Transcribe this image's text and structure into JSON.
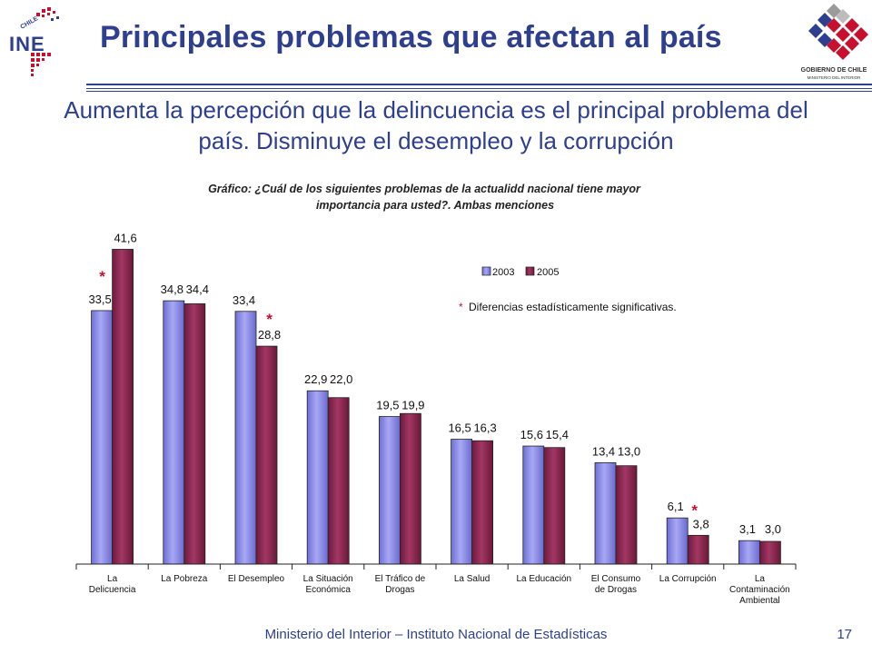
{
  "slide": {
    "title": "Principales problemas que afectan al país",
    "subtitle": "Aumenta la percepción que la delincuencia es el principal problema del país. Disminuye el desempleo y la corrupción",
    "footer": "Ministerio del Interior – Instituto Nacional de Estadísticas",
    "page_number": "17",
    "logo_left": {
      "name": "ine-logo",
      "lettering": "CHILE INE"
    },
    "logo_right": {
      "name": "gobierno-de-chile-logo",
      "lettering": "GOBIERNO DE CHILE",
      "sublettering": "MINISTERIO DEL INTERIOR"
    }
  },
  "chart_data": {
    "type": "bar",
    "title_line1": "Gráfico: ¿Cuál de los siguientes problemas de la actualidd nacional tiene mayor",
    "title_line2": "importancia para usted?. Ambas menciones",
    "categories": [
      [
        "La",
        "Delicuencia"
      ],
      [
        "La Pobreza"
      ],
      [
        "El Desempleo"
      ],
      [
        "La Situación",
        "Económica"
      ],
      [
        "El Tráfico de",
        "Drogas"
      ],
      [
        "La Salud"
      ],
      [
        "La Educación"
      ],
      [
        "El Consumo",
        "de Drogas"
      ],
      [
        "La Corrupción"
      ],
      [
        "La",
        "Contaminación",
        "Ambiental"
      ]
    ],
    "series": [
      {
        "name": "2003",
        "color": "#8f8fe6",
        "values": [
          33.5,
          34.8,
          33.4,
          22.9,
          19.5,
          16.5,
          15.6,
          13.4,
          6.1,
          3.1
        ],
        "labels": [
          "33,5",
          "34,8",
          "33,4",
          "22,9",
          "19,5",
          "16,5",
          "15,6",
          "13,4",
          "6,1",
          "3,1"
        ]
      },
      {
        "name": "2005",
        "color": "#8b2750",
        "values": [
          41.6,
          34.4,
          28.8,
          22.0,
          19.9,
          16.3,
          15.4,
          13.0,
          3.8,
          3.0
        ],
        "labels": [
          "41,6",
          "34,4",
          "28,8",
          "22,0",
          "19,9",
          "16,3",
          "15,4",
          "13,0",
          "3,8",
          "3,0"
        ]
      }
    ],
    "significant_marks": [
      {
        "category_index": 0,
        "text": "*"
      },
      {
        "category_index": 2,
        "text": "*"
      },
      {
        "category_index": 8,
        "text": "*"
      }
    ],
    "note_marker": "*",
    "note": "Diferencias estadísticamente significativas.",
    "ylim": [
      0,
      45
    ],
    "grid": false,
    "legend_position": "top-right"
  }
}
